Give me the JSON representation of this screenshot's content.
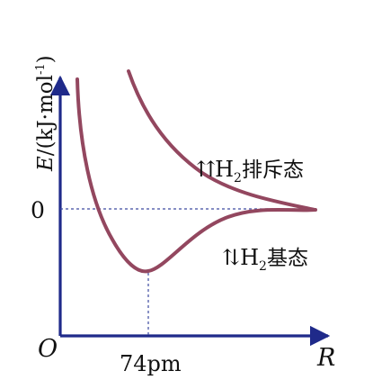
{
  "diagram": {
    "y_axis": {
      "letter": "E",
      "unit_prefix": "/(kJ·mol",
      "exponent": "-1",
      "close": ")"
    },
    "x_axis": {
      "label": "R"
    },
    "origin": "O",
    "zero_tick": "0",
    "x_tick": "74pm",
    "repulsive_state": {
      "spin": "⇈",
      "molecule": "H",
      "subscript": "2",
      "text": "排斥态"
    },
    "ground_state": {
      "spin": "⇅",
      "molecule": "H",
      "subscript": "2",
      "text": "基态"
    },
    "colors": {
      "axis": "#1f2a8a",
      "curve": "#93475f",
      "guide": "#3d4aa0"
    }
  }
}
